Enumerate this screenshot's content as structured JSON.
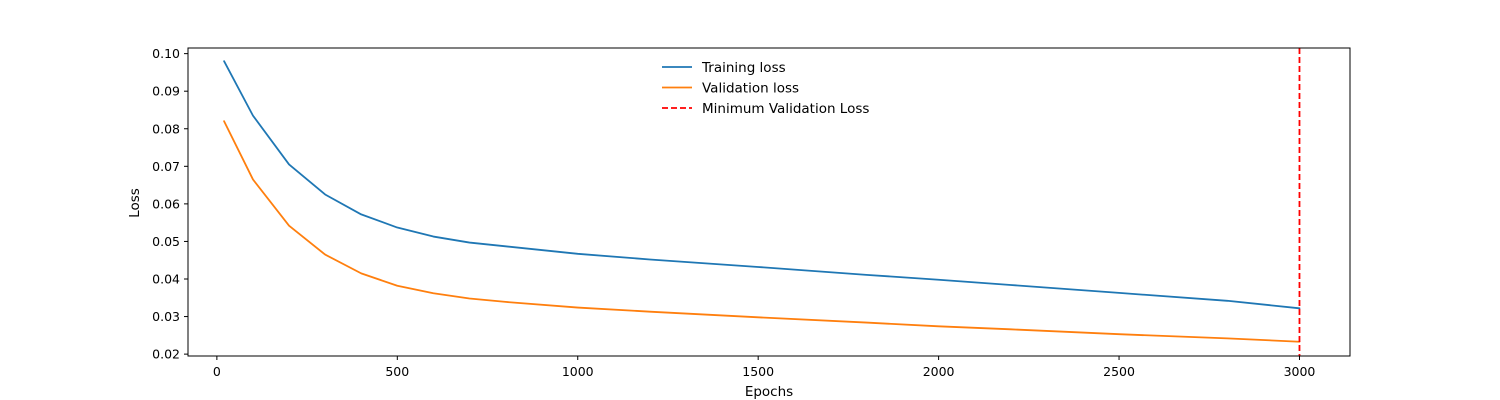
{
  "chart_data": {
    "type": "line",
    "title": "",
    "xlabel": "Epochs",
    "ylabel": "Loss",
    "xlim": [
      -80,
      3140
    ],
    "ylim": [
      0.0195,
      0.1015
    ],
    "xticks": [
      0,
      500,
      1000,
      1500,
      2000,
      2500,
      3000
    ],
    "yticks": [
      0.02,
      0.03,
      0.04,
      0.05,
      0.06,
      0.07,
      0.08,
      0.09,
      0.1
    ],
    "xtick_labels": [
      "0",
      "500",
      "1000",
      "1500",
      "2000",
      "2500",
      "3000"
    ],
    "ytick_labels": [
      "0.02",
      "0.03",
      "0.04",
      "0.05",
      "0.06",
      "0.07",
      "0.08",
      "0.09",
      "0.10"
    ],
    "grid": false,
    "legend_position": "upper-center",
    "x": [
      20,
      100,
      200,
      300,
      400,
      500,
      600,
      700,
      800,
      1000,
      1200,
      1500,
      1800,
      2000,
      2200,
      2500,
      2800,
      3000
    ],
    "series": [
      {
        "name": "Training loss",
        "color": "#1f77b4",
        "values": [
          0.098,
          0.0835,
          0.0705,
          0.0625,
          0.0572,
          0.0537,
          0.0513,
          0.0497,
          0.0487,
          0.0467,
          0.0452,
          0.0432,
          0.0411,
          0.0398,
          0.0384,
          0.0363,
          0.0342,
          0.0322
        ]
      },
      {
        "name": "Validation loss",
        "color": "#ff7f0e",
        "values": [
          0.082,
          0.0665,
          0.0542,
          0.0465,
          0.0415,
          0.0382,
          0.0362,
          0.0348,
          0.0339,
          0.0324,
          0.0313,
          0.0298,
          0.0284,
          0.0274,
          0.0266,
          0.0253,
          0.0242,
          0.0233
        ]
      }
    ],
    "vline": {
      "name": "Minimum Validation Loss",
      "x": 3000,
      "color": "#ff0000",
      "style": "dashed"
    }
  }
}
